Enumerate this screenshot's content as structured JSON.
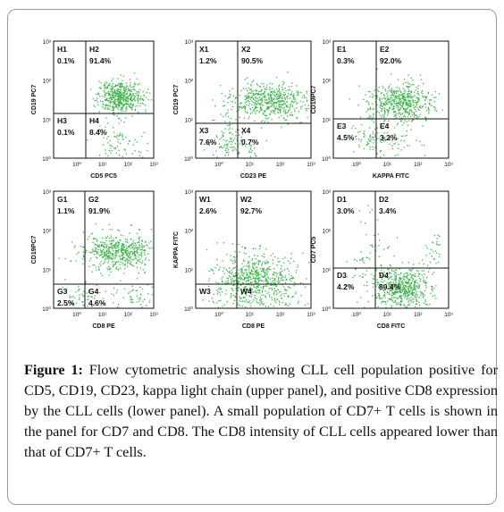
{
  "figure": {
    "caption_label": "Figure 1:",
    "caption_text": "Flow cytometric analysis showing CLL cell population positive for CD5, CD19, CD23, kappa light chain (upper panel), and positive CD8 expression by the CLL cells (lower panel). A small population of CD7+ T cells is shown in the panel for CD7 and CD8. The CD8 intensity of CLL cells appeared lower than that of CD7+ T cells."
  },
  "colors": {
    "dots": "#3cb44b",
    "axis": "#111111"
  },
  "tick_labels": [
    "10⁰",
    "10¹",
    "10²",
    "10³"
  ],
  "plots": [
    {
      "id": "h",
      "xlabel": "CD5 PC5",
      "ylabel": "CD19 PC7",
      "quadrants": [
        {
          "name": "H1",
          "pct": "0.1%"
        },
        {
          "name": "H2",
          "pct": "91.4%"
        },
        {
          "name": "H3",
          "pct": "0.1%"
        },
        {
          "name": "H4",
          "pct": "8.4%"
        }
      ]
    },
    {
      "id": "x",
      "xlabel": "CD23 PE",
      "ylabel": "CD19 PC7",
      "quadrants": [
        {
          "name": "X1",
          "pct": "1.2%"
        },
        {
          "name": "X2",
          "pct": "90.5%"
        },
        {
          "name": "X3",
          "pct": "7.6%"
        },
        {
          "name": "X4",
          "pct": "0.7%"
        }
      ]
    },
    {
      "id": "e",
      "xlabel": "KAPPA FITC",
      "ylabel": "CD19PC7",
      "quadrants": [
        {
          "name": "E1",
          "pct": "0.3%"
        },
        {
          "name": "E2",
          "pct": "92.0%"
        },
        {
          "name": "E3",
          "pct": "4.5%"
        },
        {
          "name": "E4",
          "pct": "3.2%"
        }
      ]
    },
    {
      "id": "g",
      "xlabel": "CD8 PE",
      "ylabel": "CD19PC7",
      "quadrants": [
        {
          "name": "G1",
          "pct": "1.1%"
        },
        {
          "name": "G2",
          "pct": "91.9%"
        },
        {
          "name": "G3",
          "pct": "2.5%"
        },
        {
          "name": "G4",
          "pct": "4.6%"
        }
      ]
    },
    {
      "id": "w",
      "xlabel": "CD8 PE",
      "ylabel": "KAPPA FITC",
      "quadrants": [
        {
          "name": "W1",
          "pct": "2.6%"
        },
        {
          "name": "W2",
          "pct": "92.7%"
        },
        {
          "name": "W3",
          "pct": ""
        },
        {
          "name": "W4",
          "pct": ""
        }
      ]
    },
    {
      "id": "d",
      "xlabel": "CD8 FITC",
      "ylabel": "CD7 PC5",
      "quadrants": [
        {
          "name": "D1",
          "pct": "3.0%"
        },
        {
          "name": "D2",
          "pct": "3.4%"
        },
        {
          "name": "D3",
          "pct": "4.2%"
        },
        {
          "name": "D4",
          "pct": "89.4%"
        }
      ]
    }
  ]
}
